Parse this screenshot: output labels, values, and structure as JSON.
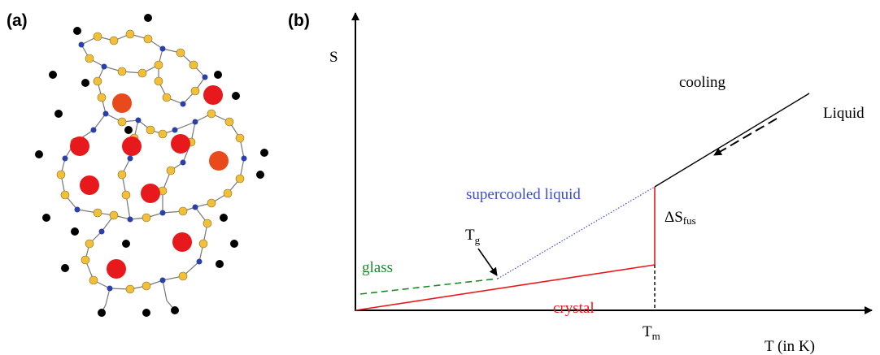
{
  "panel_a": {
    "label": "(a)"
  },
  "panel_b": {
    "label": "(b)",
    "y_axis_label": "S",
    "x_axis_label": "T (in K)",
    "annotations": {
      "cooling": "cooling",
      "liquid": "Liquid",
      "supercooled_liquid": "supercooled liquid",
      "delta_s_fus": {
        "main": "ΔS",
        "sub": "fus"
      },
      "t_g": {
        "main": "T",
        "sub": "g"
      },
      "glass": "glass",
      "crystal": "crystal",
      "t_m": {
        "main": "T",
        "sub": "m"
      }
    }
  }
}
